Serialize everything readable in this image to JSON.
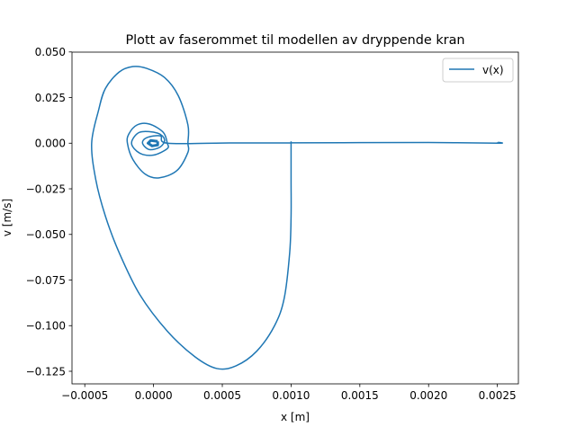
{
  "chart_data": {
    "type": "line",
    "title": "Plott av faserommet til modellen av dryppende kran",
    "xlabel": "x [m]",
    "ylabel": "v [m/s]",
    "xlim": [
      -0.000593,
      0.002653
    ],
    "ylim": [
      -0.1319,
      0.0499
    ],
    "x_ticks": [
      -0.0005,
      0.0,
      0.0005,
      0.001,
      0.0015,
      0.002,
      0.0025
    ],
    "x_tick_labels": [
      "−0.0005",
      "0.0000",
      "0.0005",
      "0.0010",
      "0.0015",
      "0.0020",
      "0.0025"
    ],
    "y_ticks": [
      0.05,
      0.025,
      0.0,
      -0.025,
      -0.05,
      -0.075,
      -0.1,
      -0.125
    ],
    "y_tick_labels": [
      "0.050",
      "0.025",
      "0.000",
      "−0.025",
      "−0.050",
      "−0.075",
      "−0.100",
      "−0.125"
    ],
    "grid": false,
    "legend": {
      "position": "top-right",
      "entries": [
        "v(x)"
      ]
    },
    "series": [
      {
        "name": "v(x)",
        "color": "#1f77b4",
        "points": [
          [
            0.0025,
            0.0005
          ],
          [
            0.0025,
            0.0
          ],
          [
            0.002,
            0.0004
          ],
          [
            0.0015,
            0.0003
          ],
          [
            0.001,
            0.0002
          ],
          [
            0.0005,
            0.0001
          ],
          [
            0.0001,
            0.0
          ],
          [
            5e-05,
            0.004
          ],
          [
            -5e-05,
            0.003
          ],
          [
            -8e-05,
            0.0
          ],
          [
            -3e-05,
            -0.0035
          ],
          [
            5e-05,
            -0.002
          ],
          [
            8e-05,
            0.002
          ],
          [
            3e-05,
            0.0055
          ],
          [
            -0.0001,
            0.006
          ],
          [
            -0.00016,
            0.0
          ],
          [
            -0.0001,
            -0.0055
          ],
          [
            0.0,
            -0.0065
          ],
          [
            0.0001,
            -0.003
          ],
          [
            0.0001,
            0.0
          ],
          [
            7e-05,
            0.006
          ],
          [
            -3e-05,
            0.0105
          ],
          [
            -0.00012,
            0.01
          ],
          [
            -0.00018,
            0.005
          ],
          [
            -0.00019,
            0.0
          ],
          [
            -0.00015,
            -0.009
          ],
          [
            -6e-05,
            -0.017
          ],
          [
            4e-05,
            -0.019
          ],
          [
            0.00017,
            -0.015
          ],
          [
            0.00025,
            -0.005
          ],
          [
            0.00025,
            0.0
          ],
          [
            0.00025,
            0.01
          ],
          [
            0.00018,
            0.026
          ],
          [
            8e-05,
            0.036
          ],
          [
            -5e-05,
            0.041
          ],
          [
            -0.00015,
            0.042
          ],
          [
            -0.00025,
            0.039
          ],
          [
            -0.00035,
            0.03
          ],
          [
            -0.0004,
            0.018
          ],
          [
            -0.00045,
            0.0
          ],
          [
            -0.00042,
            -0.02
          ],
          [
            -0.00035,
            -0.04
          ],
          [
            -0.00025,
            -0.06
          ],
          [
            -0.0001,
            -0.083
          ],
          [
            0.0001,
            -0.103
          ],
          [
            0.0003,
            -0.117
          ],
          [
            0.00046,
            -0.1235
          ],
          [
            0.0006,
            -0.122
          ],
          [
            0.00075,
            -0.114
          ],
          [
            0.00088,
            -0.1
          ],
          [
            0.00095,
            -0.085
          ],
          [
            0.00099,
            -0.06
          ],
          [
            0.001,
            -0.04
          ],
          [
            0.001,
            -0.02
          ],
          [
            0.001,
            0.001
          ]
        ]
      }
    ]
  }
}
